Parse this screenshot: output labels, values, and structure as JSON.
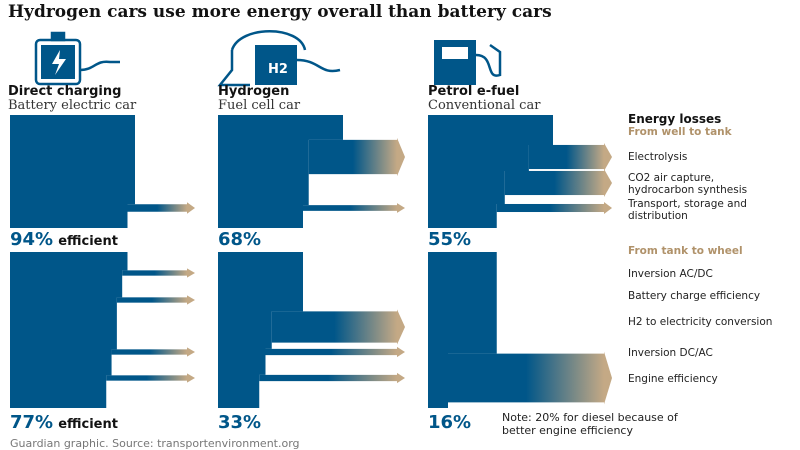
{
  "title": "Hydrogen cars use more energy overall than battery cars",
  "columns": [
    {
      "heading": "Direct charging",
      "subheading": "Battery electric car",
      "well_to_tank": {
        "value": 94,
        "label": "94%"
      },
      "tank_to_wheel": {
        "value": 77,
        "label": "77%"
      }
    },
    {
      "heading": "Hydrogen",
      "subheading": "Fuel cell car",
      "well_to_tank": {
        "value": 68,
        "label": "68%"
      },
      "tank_to_wheel": {
        "value": 33,
        "label": "33%"
      }
    },
    {
      "heading": "Petrol e-fuel",
      "subheading": "Conventional car",
      "well_to_tank": {
        "value": 55,
        "label": "55%"
      },
      "tank_to_wheel": {
        "value": 16,
        "label": "16%"
      }
    }
  ],
  "efficient_word": "efficient",
  "icon_label": "H2",
  "legend": {
    "title": "Energy losses",
    "well_to_tank_heading": "From well to tank",
    "well_to_tank": [
      "Electrolysis",
      "CO2 air capture, hydrocarbon synthesis",
      "Transport, storage and distribution"
    ],
    "tank_to_wheel_heading": "From tank to wheel",
    "tank_to_wheel": [
      "Inversion AC/DC",
      "Battery charge efficiency",
      "H2 to electricity conversion",
      "Inversion DC/AC",
      "Engine efficiency"
    ]
  },
  "note": "Note: 20% for diesel because of better engine efficiency",
  "source": "Guardian graphic. Source: transportenvironment.org"
}
